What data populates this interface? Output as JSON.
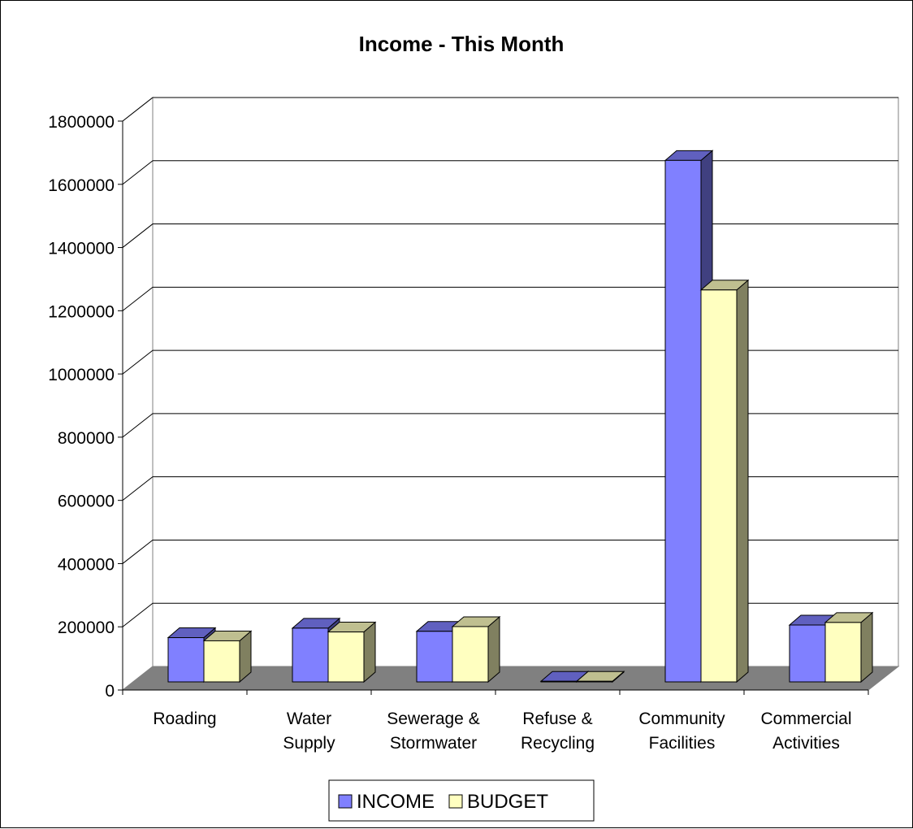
{
  "chart_data": {
    "type": "bar",
    "title": "Income - This Month",
    "categories": [
      [
        "Roading"
      ],
      [
        "Water",
        "Supply"
      ],
      [
        "Sewerage &",
        "Stormwater"
      ],
      [
        "Refuse &",
        "Recycling"
      ],
      [
        "Community",
        "Facilities"
      ],
      [
        "Commercial",
        "Activities"
      ]
    ],
    "series": [
      {
        "name": "INCOME",
        "color": "#8080ff",
        "values": [
          140000,
          170000,
          160000,
          2000,
          1650000,
          180000
        ]
      },
      {
        "name": "BUDGET",
        "color": "#ffffc0",
        "values": [
          130000,
          158000,
          175000,
          2000,
          1240000,
          188000
        ]
      }
    ],
    "yticks": [
      "0",
      "200000",
      "400000",
      "600000",
      "800000",
      "1000000",
      "1200000",
      "1400000",
      "1600000",
      "1800000"
    ],
    "ylim": [
      0,
      1800000
    ],
    "grid": true,
    "legend_position": "bottom"
  }
}
